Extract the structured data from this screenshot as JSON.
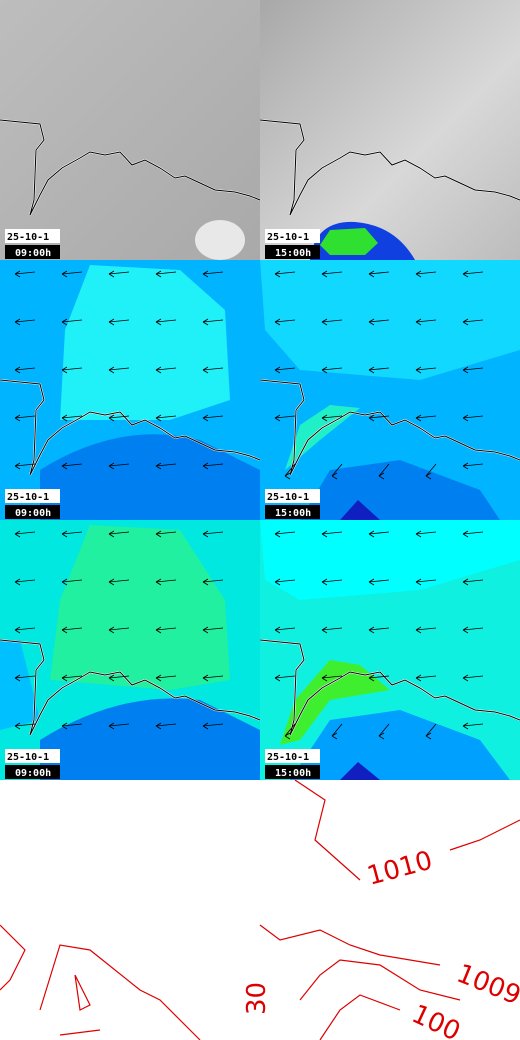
{
  "panels": [
    {
      "date": "25-10-1",
      "time": "09:00h"
    },
    {
      "date": "25-10-1",
      "time": "15:00h"
    },
    {
      "date": "25-10-1",
      "time": "09:00h"
    },
    {
      "date": "25-10-1",
      "time": "15:00h"
    },
    {
      "date": "25-10-1",
      "time": "09:00h"
    },
    {
      "date": "25-10-1",
      "time": "15:00h"
    }
  ],
  "contour_labels": [
    "1010",
    "1009",
    "100",
    "30"
  ]
}
